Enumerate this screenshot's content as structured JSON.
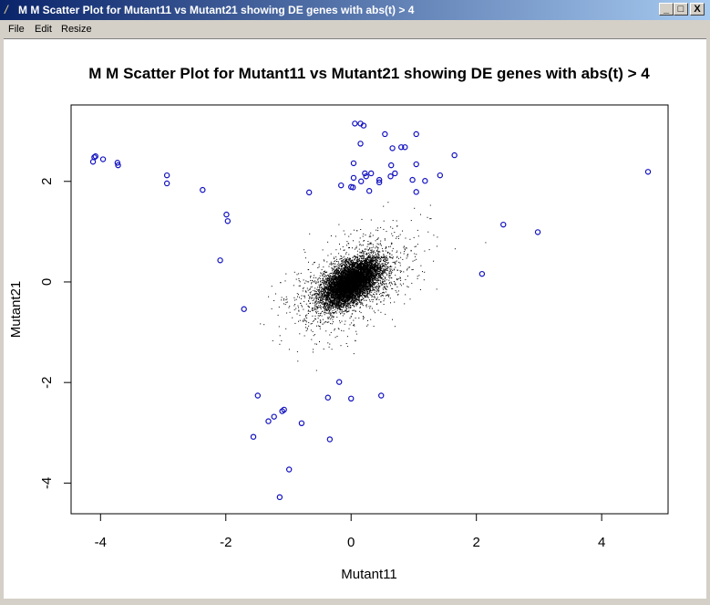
{
  "window": {
    "title": "M M Scatter Plot for Mutant11 vs Mutant21 showing DE genes with abs(t) > 4",
    "minimize_label": "_",
    "maximize_label": "□",
    "close_label": "X"
  },
  "menu": {
    "items": [
      {
        "label": "File"
      },
      {
        "label": "Edit"
      },
      {
        "label": "Resize"
      }
    ]
  },
  "chart_data": {
    "type": "scatter",
    "title": "M M Scatter Plot for Mutant11 vs Mutant21 showing DE genes with abs(t) > 4",
    "xlabel": "Mutant11",
    "ylabel": "Mutant21",
    "xlim": [
      -4.47,
      5.06
    ],
    "ylim": [
      -4.61,
      3.52
    ],
    "xticks": [
      "-4",
      "-2",
      "0",
      "2",
      "4"
    ],
    "yticks": [
      "-4",
      "-2",
      "0",
      "2"
    ],
    "grid": false,
    "colors": {
      "all_points": "#000000",
      "de_genes": "#1010c0"
    },
    "de_genes": {
      "x": [
        0.06,
        0.15,
        0.2,
        0.54,
        1.04,
        0.15,
        0.66,
        0.8,
        0.86,
        1.65,
        0.04,
        0.64,
        1.04,
        0.22,
        0.32,
        0.7,
        0.04,
        0.24,
        0.63,
        1.42,
        0.16,
        0.45,
        0.45,
        0.98,
        1.18,
        -0.16,
        0,
        0.03,
        0.29,
        1.04,
        -0.67,
        -4.1,
        -4.08,
        -4.12,
        -3.96,
        -3.73,
        -3.72,
        -2.94,
        -2.94,
        -2.37,
        -1.99,
        -1.97,
        -2.09,
        -1.71,
        2.43,
        2.98,
        2.09,
        4.74,
        -0.19,
        -0.37,
        0,
        0.48,
        -1.49,
        -1.32,
        -1.23,
        -1.1,
        -1.07,
        -0.79,
        -1.56,
        -0.34,
        -0.99,
        -1.14
      ],
      "y": [
        3.15,
        3.15,
        3.11,
        2.94,
        2.94,
        2.75,
        2.66,
        2.68,
        2.68,
        2.52,
        2.36,
        2.32,
        2.34,
        2.16,
        2.16,
        2.16,
        2.07,
        2.1,
        2.1,
        2.12,
        2.0,
        2.03,
        1.98,
        2.03,
        2.01,
        1.92,
        1.89,
        1.88,
        1.81,
        1.79,
        1.78,
        2.48,
        2.5,
        2.39,
        2.44,
        2.37,
        2.32,
        2.12,
        1.96,
        1.83,
        1.34,
        1.21,
        0.43,
        -0.54,
        1.14,
        0.99,
        0.16,
        2.19,
        -1.99,
        -2.3,
        -2.32,
        -2.26,
        -2.26,
        -2.77,
        -2.68,
        -2.57,
        -2.54,
        -2.81,
        -3.08,
        -3.13,
        -3.73,
        -4.28
      ]
    }
  }
}
